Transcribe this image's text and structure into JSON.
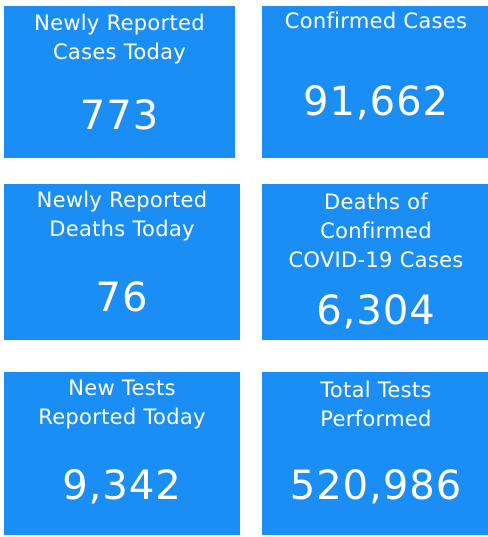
{
  "colors": {
    "tile_background": "#1a8ef5",
    "tile_text": "#ffffff",
    "page_background": "#ffffff"
  },
  "tiles": [
    {
      "label": "Newly Reported\nCases Today",
      "value": "773"
    },
    {
      "label": "Confirmed Cases",
      "value": "91,662"
    },
    {
      "label": "Newly Reported\nDeaths Today",
      "value": "76"
    },
    {
      "label": "Deaths of\nConfirmed\nCOVID-19 Cases",
      "value": "6,304"
    },
    {
      "label": "New Tests\nReported Today",
      "value": "9,342"
    },
    {
      "label": "Total Tests\nPerformed",
      "value": "520,986"
    }
  ]
}
